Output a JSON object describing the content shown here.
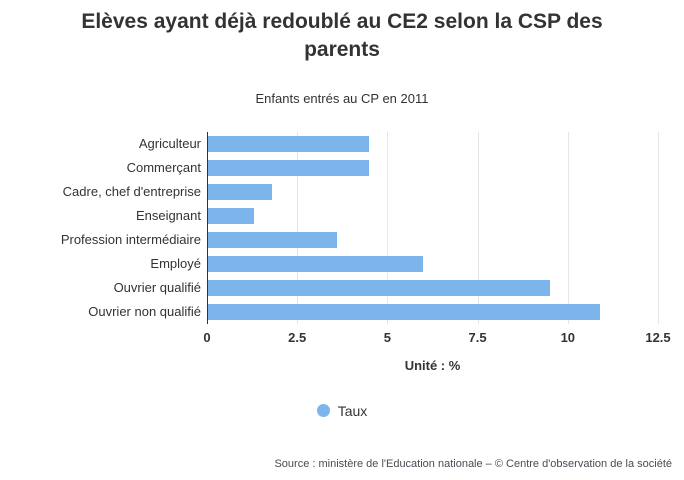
{
  "chart_data": {
    "type": "bar",
    "orientation": "horizontal",
    "title": "Elèves ayant déjà redoublé au CE2 selon la CSP des parents",
    "subtitle": "Enfants entrés au CP en 2011",
    "categories": [
      "Agriculteur",
      "Commerçant",
      "Cadre, chef d'entreprise",
      "Enseignant",
      "Profession intermédiaire",
      "Employé",
      "Ouvrier qualifié",
      "Ouvrier non qualifié"
    ],
    "series": [
      {
        "name": "Taux",
        "values": [
          4.5,
          4.5,
          1.8,
          1.3,
          3.6,
          6.0,
          9.5,
          10.9
        ]
      }
    ],
    "xlabel": "Unité : %",
    "ylabel": "",
    "xlim": [
      0,
      12.5
    ],
    "xticks": [
      0,
      2.5,
      5,
      7.5,
      10,
      12.5
    ],
    "xtick_labels": [
      "0",
      "2.5",
      "5",
      "7.5",
      "10",
      "12.5"
    ],
    "grid": true,
    "legend_position": "bottom",
    "unit": "%",
    "colors": {
      "bar": "#7cb5ec",
      "gridline": "#e6e6e6",
      "axis": "#333333",
      "text": "#333333"
    }
  },
  "legend": {
    "items": [
      {
        "label": "Taux",
        "color": "#7cb5ec"
      }
    ]
  },
  "footer": {
    "source": "Source : ministère de l'Education nationale – © Centre d'observation de la société"
  }
}
